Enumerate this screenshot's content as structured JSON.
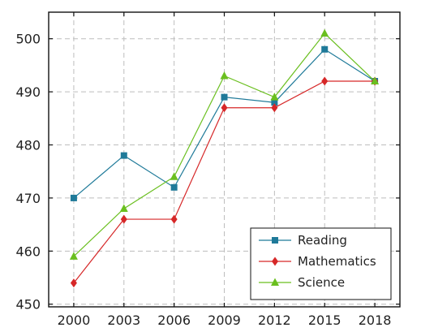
{
  "chart_data": {
    "type": "line",
    "title": "",
    "xlabel": "",
    "ylabel": "",
    "x": [
      "2000",
      "2003",
      "2006",
      "2009",
      "2012",
      "2015",
      "2018"
    ],
    "xlim": [
      1998.5,
      2019.5
    ],
    "ylim": [
      449.5,
      505
    ],
    "yticks": [
      450,
      460,
      470,
      480,
      490,
      500
    ],
    "grid": true,
    "legend_position": "bottom-right",
    "series": [
      {
        "name": "Reading",
        "color": "#1f7a99",
        "marker": "square",
        "values": [
          470,
          478,
          472,
          489,
          488,
          498,
          492
        ]
      },
      {
        "name": "Mathematics",
        "color": "#d62728",
        "marker": "diamond",
        "values": [
          454,
          466,
          466,
          487,
          487,
          492,
          492
        ]
      },
      {
        "name": "Science",
        "color": "#6abf1f",
        "marker": "triangle",
        "values": [
          459,
          468,
          474,
          493,
          489,
          501,
          492
        ]
      }
    ]
  }
}
